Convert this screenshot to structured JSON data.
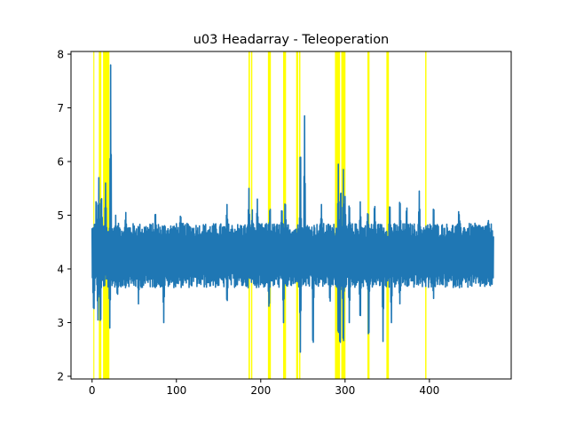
{
  "chart_data": {
    "type": "line",
    "title": "u03 Headarray - Teleoperation",
    "xlabel": "",
    "ylabel": "",
    "xlim": [
      -25,
      497
    ],
    "ylim": [
      1.95,
      8.05
    ],
    "xticks": [
      0,
      100,
      200,
      300,
      400
    ],
    "yticks": [
      2,
      3,
      4,
      5,
      6,
      7,
      8
    ],
    "grid": false,
    "legend": "none",
    "colors": {
      "line": "#1f77b4",
      "highlight": "#ffff00",
      "axes": "#000000",
      "background": "#ffffff"
    },
    "highlight_intervals": [
      [
        1.5,
        2.7
      ],
      [
        8.0,
        11.0
      ],
      [
        13.0,
        20.5
      ],
      [
        185.5,
        187.2
      ],
      [
        188.5,
        190.0
      ],
      [
        208.5,
        212.0
      ],
      [
        226.5,
        230.0
      ],
      [
        242.0,
        244.5
      ],
      [
        245.5,
        247.0
      ],
      [
        288.0,
        294.0
      ],
      [
        295.5,
        300.5
      ],
      [
        326.5,
        329.0
      ],
      [
        349.0,
        352.0
      ],
      [
        395.0,
        396.5
      ]
    ],
    "series": [
      {
        "type": "oscillating_signal",
        "x_start": 0,
        "x_end": 476,
        "points_per_unit": 3,
        "typical_band": [
          3.65,
          4.85
        ],
        "mean": 4.25,
        "peaks": [
          [
            3,
            4.85
          ],
          [
            5,
            5.45
          ],
          [
            8,
            5.7
          ],
          [
            11,
            5.55
          ],
          [
            16,
            5.6
          ],
          [
            22,
            7.8
          ],
          [
            28,
            5.0
          ],
          [
            40,
            5.05
          ],
          [
            75,
            5.1
          ],
          [
            105,
            5.1
          ],
          [
            160,
            5.2
          ],
          [
            186,
            5.5
          ],
          [
            190,
            5.1
          ],
          [
            196,
            5.3
          ],
          [
            211,
            5.25
          ],
          [
            225,
            5.2
          ],
          [
            229,
            5.35
          ],
          [
            247,
            6.65
          ],
          [
            252,
            6.85
          ],
          [
            272,
            5.2
          ],
          [
            292,
            5.95
          ],
          [
            295,
            5.7
          ],
          [
            298,
            5.85
          ],
          [
            300,
            5.35
          ],
          [
            305,
            5.3
          ],
          [
            318,
            5.25
          ],
          [
            327,
            5.15
          ],
          [
            335,
            5.3
          ],
          [
            353,
            5.3
          ],
          [
            365,
            5.4
          ],
          [
            373,
            5.25
          ],
          [
            388,
            5.45
          ],
          [
            405,
            5.25
          ],
          [
            435,
            5.15
          ],
          [
            470,
            4.9
          ]
        ],
        "troughs": [
          [
            2,
            3.1
          ],
          [
            7,
            3.05
          ],
          [
            10,
            2.75
          ],
          [
            21,
            2.9
          ],
          [
            30,
            3.45
          ],
          [
            55,
            3.35
          ],
          [
            85,
            3.0
          ],
          [
            160,
            3.3
          ],
          [
            210,
            3.15
          ],
          [
            227,
            3.0
          ],
          [
            247,
            2.45
          ],
          [
            262,
            2.2
          ],
          [
            282,
            3.3
          ],
          [
            292,
            2.45
          ],
          [
            294,
            2.2
          ],
          [
            298,
            2.25
          ],
          [
            305,
            3.0
          ],
          [
            318,
            2.9
          ],
          [
            328,
            2.45
          ],
          [
            345,
            2.65
          ],
          [
            355,
            3.0
          ],
          [
            365,
            3.35
          ],
          [
            405,
            3.45
          ],
          [
            468,
            3.7
          ]
        ]
      }
    ]
  }
}
